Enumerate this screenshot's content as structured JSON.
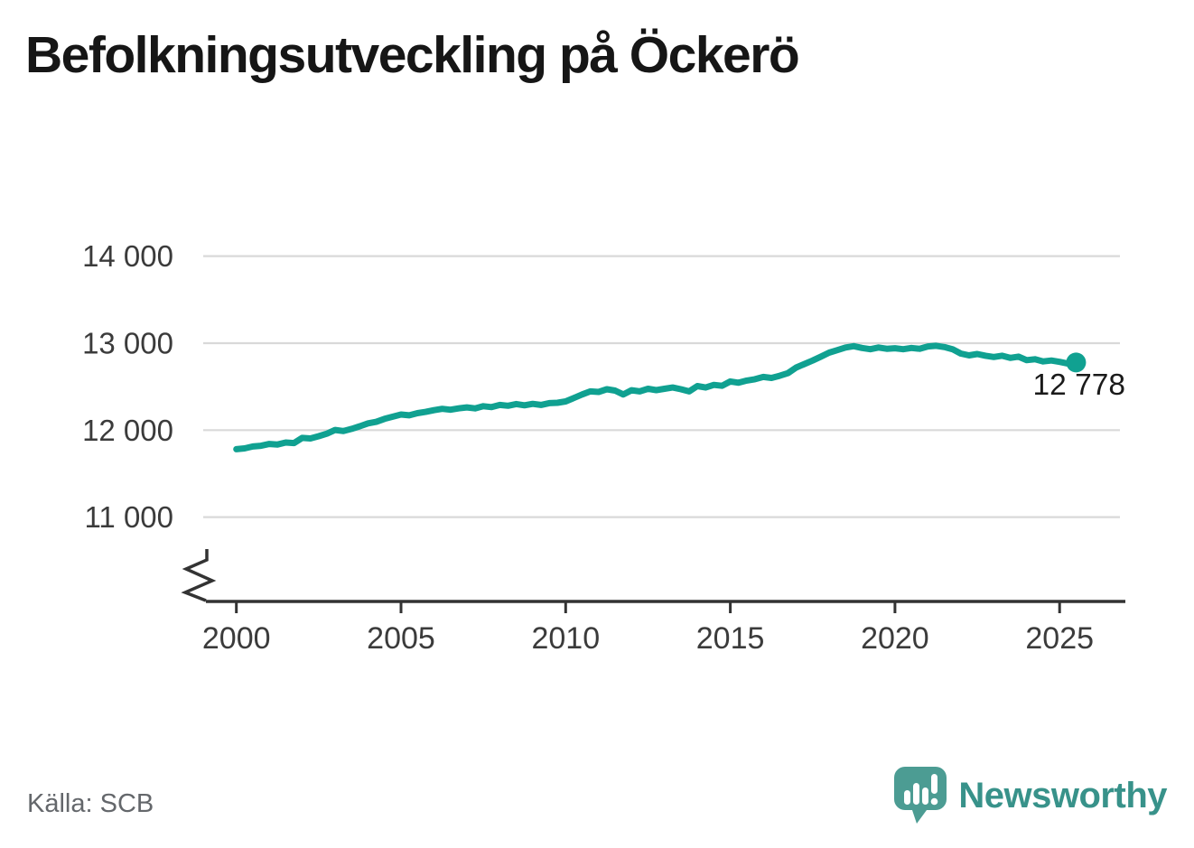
{
  "title": "Befolkningsutveckling på Öckerö",
  "source_label": "Källa: SCB",
  "logo": {
    "name": "Newsworthy"
  },
  "colors": {
    "line": "#10A191",
    "grid": "#D9D9D9",
    "axis": "#333333",
    "tick_label": "#3B3B3B",
    "annotation": "#1A1A1A",
    "logo_icon": "#4C9C93",
    "logo_text": "#38928A"
  },
  "chart_data": {
    "type": "line",
    "title": "Befolkningsutveckling på Öckerö",
    "xlabel": "",
    "ylabel": "",
    "grid": "horizontal",
    "x_range_years": [
      2000,
      2025.5
    ],
    "ylim_visible": [
      11000,
      14000
    ],
    "y_axis_break": true,
    "x_start": 2000,
    "x_step": 0.25,
    "y_ticks": [
      {
        "value": 14000,
        "label": "14 000"
      },
      {
        "value": 13000,
        "label": "13 000"
      },
      {
        "value": 12000,
        "label": "12 000"
      },
      {
        "value": 11000,
        "label": "11 000"
      }
    ],
    "x_ticks": [
      {
        "value": 2000,
        "label": "2000"
      },
      {
        "value": 2005,
        "label": "2005"
      },
      {
        "value": 2010,
        "label": "2010"
      },
      {
        "value": 2015,
        "label": "2015"
      },
      {
        "value": 2020,
        "label": "2020"
      },
      {
        "value": 2025,
        "label": "2025"
      }
    ],
    "series": [
      {
        "name": "Befolkning Öckerö",
        "values": [
          11781,
          11790,
          11812,
          11820,
          11841,
          11835,
          11858,
          11852,
          11911,
          11905,
          11930,
          11960,
          12002,
          11990,
          12015,
          12045,
          12078,
          12095,
          12130,
          12155,
          12180,
          12170,
          12195,
          12210,
          12229,
          12245,
          12235,
          12250,
          12262,
          12250,
          12275,
          12265,
          12290,
          12280,
          12300,
          12285,
          12302,
          12290,
          12310,
          12315,
          12330,
          12370,
          12410,
          12445,
          12439,
          12470,
          12455,
          12410,
          12459,
          12445,
          12475,
          12460,
          12475,
          12490,
          12470,
          12445,
          12507,
          12490,
          12520,
          12510,
          12560,
          12545,
          12570,
          12585,
          12611,
          12600,
          12625,
          12655,
          12719,
          12760,
          12800,
          12845,
          12891,
          12920,
          12950,
          12965,
          12945,
          12930,
          12950,
          12935,
          12942,
          12930,
          12945,
          12935,
          12962,
          12970,
          12955,
          12930,
          12880,
          12860,
          12875,
          12855,
          12841,
          12855,
          12830,
          12845,
          12804,
          12815,
          12790,
          12800,
          12785,
          12765,
          12778
        ]
      }
    ],
    "last_value": 12778,
    "annotation_label": "12 778"
  }
}
